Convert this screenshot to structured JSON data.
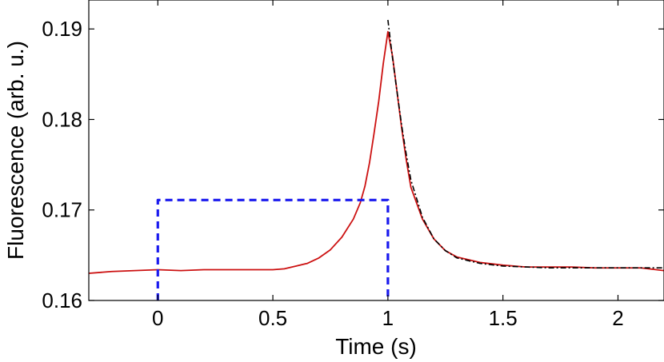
{
  "chart_data": {
    "type": "line",
    "title": "",
    "xlabel": "Time  (s)",
    "ylabel": "Fluorescence (arb. u.)",
    "xlim": [
      -0.3,
      2.2
    ],
    "ylim": [
      0.16,
      0.1932
    ],
    "x_ticks": [
      0,
      0.5,
      1,
      1.5,
      2
    ],
    "x_tick_labels": [
      "0",
      "0.5",
      "1",
      "1.5",
      "2"
    ],
    "y_ticks": [
      0.16,
      0.17,
      0.18,
      0.19
    ],
    "y_tick_labels": [
      "0.16",
      "0.17",
      "0.18",
      "0.19"
    ],
    "grid": false,
    "legend": "none",
    "colors": {
      "signal": "#cc1111",
      "pulse": "#1a1aee",
      "fit": "#000000"
    },
    "series": [
      {
        "style": "solid",
        "color": "#cc1111",
        "x": [
          -0.3,
          -0.2,
          -0.1,
          0.0,
          0.1,
          0.2,
          0.3,
          0.4,
          0.5,
          0.55,
          0.6,
          0.65,
          0.7,
          0.75,
          0.8,
          0.85,
          0.88,
          0.9,
          0.92,
          0.94,
          0.96,
          0.98,
          1.0,
          1.02,
          1.04,
          1.06,
          1.08,
          1.1,
          1.15,
          1.2,
          1.25,
          1.3,
          1.4,
          1.5,
          1.6,
          1.7,
          1.8,
          1.9,
          2.0,
          2.1,
          2.2
        ],
        "y": [
          0.163,
          0.1632,
          0.1633,
          0.1634,
          0.1633,
          0.1634,
          0.1634,
          0.1634,
          0.1634,
          0.1635,
          0.1638,
          0.1641,
          0.1647,
          0.1656,
          0.167,
          0.169,
          0.1708,
          0.1726,
          0.1752,
          0.1785,
          0.182,
          0.1862,
          0.1897,
          0.187,
          0.183,
          0.179,
          0.1755,
          0.1725,
          0.169,
          0.1668,
          0.1655,
          0.1648,
          0.1642,
          0.1639,
          0.1637,
          0.1637,
          0.1637,
          0.1636,
          0.1636,
          0.1636,
          0.1633
        ]
      },
      {
        "style": "dashed",
        "color": "#1a1aee",
        "x": [
          0.0,
          0.0,
          1.0,
          1.0
        ],
        "y": [
          0.16,
          0.1711,
          0.1711,
          0.16
        ]
      },
      {
        "style": "dash-dot",
        "color": "#000000",
        "x": [
          1.0,
          1.02,
          1.04,
          1.06,
          1.08,
          1.1,
          1.15,
          1.2,
          1.25,
          1.3,
          1.4,
          1.5,
          1.6,
          1.7,
          1.8,
          1.9,
          2.0,
          2.1,
          2.2
        ],
        "y": [
          0.191,
          0.1868,
          0.183,
          0.1793,
          0.1761,
          0.1733,
          0.1692,
          0.1668,
          0.1655,
          0.1647,
          0.1641,
          0.1638,
          0.1637,
          0.1636,
          0.1636,
          0.1636,
          0.1636,
          0.1636,
          0.1636
        ]
      }
    ]
  }
}
